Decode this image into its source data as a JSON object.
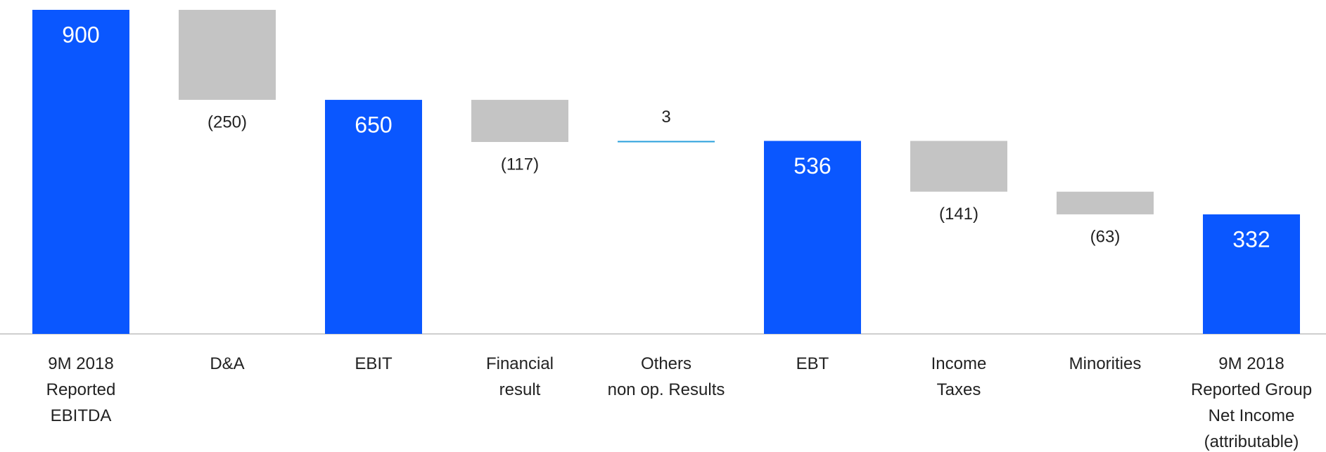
{
  "chart_data": {
    "type": "waterfall",
    "categories": [
      "9M 2018\nReported\nEBITDA",
      "D&A",
      "EBIT",
      "Financial\nresult",
      "Others\nnon op. Results",
      "EBT",
      "Income\nTaxes",
      "Minorities",
      "9M 2018\nReported Group\nNet Income\n(attributable)"
    ],
    "measures": [
      "absolute",
      "relative",
      "absolute",
      "relative",
      "relative",
      "absolute",
      "relative",
      "relative",
      "absolute"
    ],
    "values": [
      900,
      -250,
      650,
      -117,
      3,
      536,
      -141,
      -63,
      332
    ],
    "value_labels": [
      "900",
      "(250)",
      "650",
      "(117)",
      "3",
      "536",
      "(141)",
      "(63)",
      "332"
    ],
    "colors": [
      "#0a57ff",
      "#c4c4c4",
      "#0a57ff",
      "#c4c4c4",
      "#29a0dc",
      "#0a57ff",
      "#c4c4c4",
      "#c4c4c4",
      "#0a57ff"
    ],
    "ylim": [
      0,
      900
    ]
  }
}
